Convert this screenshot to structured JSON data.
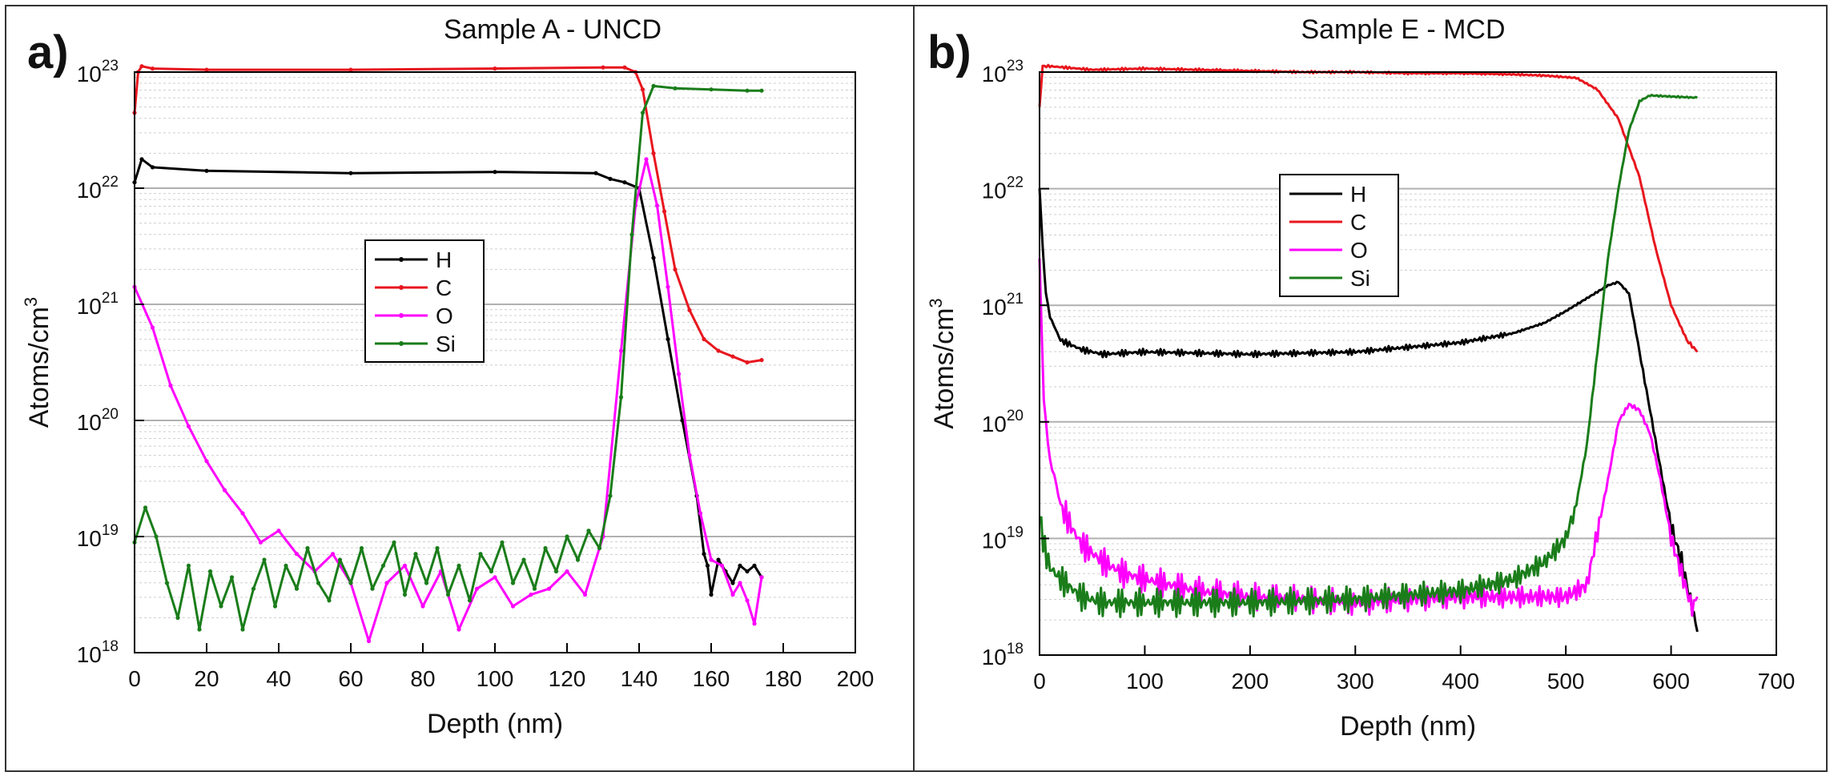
{
  "chart_data": [
    {
      "type": "line",
      "panel_label": "a)",
      "title": "Sample A - UNCD",
      "xlabel": "Depth (nm)",
      "ylabel_main": "Atoms/cm",
      "ylabel_sup": "3",
      "scale_y": "log",
      "xlim": [
        0,
        200
      ],
      "ylim": [
        1e+18,
        1e+23
      ],
      "x_ticks": [
        "0",
        "20",
        "40",
        "60",
        "80",
        "100",
        "120",
        "140",
        "160",
        "180",
        "200"
      ],
      "y_ticks": [
        {
          "base": "10",
          "exp": "18"
        },
        {
          "base": "10",
          "exp": "19"
        },
        {
          "base": "10",
          "exp": "20"
        },
        {
          "base": "10",
          "exp": "21"
        },
        {
          "base": "10",
          "exp": "22"
        },
        {
          "base": "10",
          "exp": "23"
        }
      ],
      "legend": [
        "H",
        "C",
        "O",
        "Si"
      ],
      "legend_position": "center-left",
      "series": [
        {
          "name": "H",
          "color": "#000000",
          "markers": true,
          "x": [
            0,
            2,
            5,
            20,
            60,
            100,
            128,
            132,
            136,
            140,
            144,
            148,
            152,
            156,
            158,
            159,
            160,
            162,
            164,
            166,
            168,
            170,
            172,
            174
          ],
          "logy": [
            22.05,
            22.25,
            22.18,
            22.15,
            22.13,
            22.14,
            22.13,
            22.08,
            22.05,
            22.0,
            21.4,
            20.7,
            20.0,
            19.35,
            18.85,
            18.75,
            18.5,
            18.8,
            18.7,
            18.6,
            18.75,
            18.7,
            18.75,
            18.65
          ]
        },
        {
          "name": "C",
          "color": "#e8161e",
          "markers": true,
          "x": [
            0,
            1,
            2,
            5,
            20,
            60,
            100,
            130,
            136,
            139,
            141,
            144,
            147,
            150,
            154,
            158,
            162,
            166,
            170,
            174
          ],
          "logy": [
            22.65,
            23.0,
            23.05,
            23.03,
            23.02,
            23.02,
            23.03,
            23.04,
            23.04,
            23.0,
            22.85,
            22.3,
            21.8,
            21.3,
            20.95,
            20.7,
            20.6,
            20.55,
            20.5,
            20.52
          ]
        },
        {
          "name": "O",
          "color": "#ff00ff",
          "markers": true,
          "x": [
            0,
            5,
            10,
            15,
            20,
            25,
            30,
            35,
            40,
            45,
            50,
            55,
            60,
            65,
            70,
            75,
            80,
            85,
            90,
            95,
            100,
            105,
            110,
            115,
            120,
            125,
            130,
            135,
            139,
            142,
            145,
            148,
            151,
            154,
            157,
            160,
            163,
            166,
            168,
            170,
            172,
            174
          ],
          "logy": [
            21.15,
            20.8,
            20.3,
            19.95,
            19.65,
            19.4,
            19.2,
            18.95,
            19.05,
            18.85,
            18.7,
            18.85,
            18.6,
            18.1,
            18.6,
            18.75,
            18.4,
            18.7,
            18.2,
            18.55,
            18.65,
            18.4,
            18.5,
            18.55,
            18.7,
            18.5,
            19.0,
            20.6,
            21.85,
            22.25,
            21.85,
            21.15,
            20.4,
            19.7,
            19.2,
            18.8,
            18.75,
            18.5,
            18.6,
            18.45,
            18.25,
            18.65
          ]
        },
        {
          "name": "Si",
          "color": "#1a7d1a",
          "markers": true,
          "x": [
            0,
            3,
            6,
            9,
            12,
            15,
            18,
            21,
            24,
            27,
            30,
            33,
            36,
            39,
            42,
            45,
            48,
            51,
            54,
            57,
            60,
            63,
            66,
            69,
            72,
            75,
            78,
            81,
            84,
            87,
            90,
            93,
            96,
            99,
            102,
            105,
            108,
            111,
            114,
            117,
            120,
            123,
            126,
            129,
            132,
            135,
            138,
            141,
            144,
            150,
            160,
            170,
            174
          ],
          "logy": [
            18.95,
            19.25,
            19.0,
            18.6,
            18.3,
            18.75,
            18.2,
            18.7,
            18.4,
            18.65,
            18.2,
            18.55,
            18.8,
            18.4,
            18.75,
            18.55,
            18.9,
            18.6,
            18.45,
            18.8,
            18.6,
            18.9,
            18.55,
            18.75,
            18.95,
            18.5,
            18.85,
            18.6,
            18.9,
            18.5,
            18.75,
            18.45,
            18.85,
            18.7,
            18.95,
            18.6,
            18.8,
            18.55,
            18.9,
            18.7,
            19.0,
            18.8,
            19.05,
            18.9,
            19.35,
            20.2,
            21.6,
            22.65,
            22.88,
            22.86,
            22.85,
            22.84,
            22.84
          ]
        }
      ]
    },
    {
      "type": "line",
      "panel_label": "b)",
      "title": "Sample E - MCD",
      "xlabel": "Depth (nm)",
      "ylabel_main": "Atoms/cm",
      "ylabel_sup": "3",
      "scale_y": "log",
      "xlim": [
        0,
        700
      ],
      "ylim": [
        1e+18,
        1e+23
      ],
      "x_ticks": [
        "0",
        "100",
        "200",
        "300",
        "400",
        "500",
        "600",
        "700"
      ],
      "y_ticks": [
        {
          "base": "10",
          "exp": "18"
        },
        {
          "base": "10",
          "exp": "19"
        },
        {
          "base": "10",
          "exp": "20"
        },
        {
          "base": "10",
          "exp": "21"
        },
        {
          "base": "10",
          "exp": "22"
        },
        {
          "base": "10",
          "exp": "23"
        }
      ],
      "legend": [
        "H",
        "C",
        "O",
        "Si"
      ],
      "legend_position": "upper-center",
      "series": [
        {
          "name": "H",
          "color": "#000000",
          "markers": false,
          "x": [
            0,
            3,
            6,
            10,
            20,
            40,
            60,
            100,
            200,
            300,
            400,
            450,
            480,
            500,
            520,
            540,
            550,
            560,
            570,
            580,
            590,
            600,
            610,
            615,
            620,
            625
          ],
          "logy": [
            22.0,
            21.5,
            21.1,
            20.9,
            20.7,
            20.62,
            20.58,
            20.6,
            20.58,
            20.6,
            20.68,
            20.76,
            20.85,
            20.95,
            21.06,
            21.17,
            21.2,
            21.1,
            20.6,
            20.1,
            19.6,
            19.1,
            18.8,
            18.6,
            18.4,
            18.2
          ]
        },
        {
          "name": "C",
          "color": "#e8161e",
          "markers": false,
          "x": [
            0,
            3,
            10,
            50,
            100,
            150,
            200,
            250,
            300,
            350,
            400,
            450,
            480,
            510,
            530,
            550,
            570,
            585,
            600,
            615,
            625
          ],
          "logy": [
            22.7,
            23.05,
            23.05,
            23.02,
            23.03,
            23.02,
            23.01,
            23.0,
            23.0,
            22.99,
            22.99,
            22.98,
            22.97,
            22.95,
            22.85,
            22.6,
            22.1,
            21.5,
            21.0,
            20.7,
            20.6
          ]
        },
        {
          "name": "O",
          "color": "#ff00ff",
          "markers": false,
          "x": [
            0,
            4,
            8,
            12,
            16,
            20,
            30,
            40,
            60,
            80,
            100,
            150,
            200,
            250,
            300,
            350,
            400,
            450,
            500,
            520,
            540,
            550,
            560,
            570,
            580,
            590,
            600,
            610,
            620,
            625
          ],
          "logy": [
            21.4,
            20.2,
            19.8,
            19.6,
            19.45,
            19.3,
            19.1,
            18.95,
            18.8,
            18.7,
            18.65,
            18.55,
            18.5,
            18.48,
            18.45,
            18.48,
            18.5,
            18.5,
            18.5,
            18.6,
            19.5,
            20.0,
            20.15,
            20.1,
            19.9,
            19.5,
            19.0,
            18.7,
            18.4,
            18.5
          ]
        },
        {
          "name": "Si",
          "color": "#1a7d1a",
          "markers": false,
          "x": [
            0,
            5,
            10,
            20,
            40,
            60,
            100,
            200,
            300,
            400,
            450,
            480,
            500,
            510,
            520,
            530,
            540,
            550,
            560,
            570,
            580,
            600,
            625
          ],
          "logy": [
            19.2,
            18.9,
            18.75,
            18.65,
            18.5,
            18.45,
            18.45,
            18.45,
            18.48,
            18.55,
            18.65,
            18.8,
            19.0,
            19.3,
            19.8,
            20.6,
            21.4,
            22.0,
            22.5,
            22.75,
            22.8,
            22.79,
            22.78
          ]
        }
      ]
    }
  ]
}
